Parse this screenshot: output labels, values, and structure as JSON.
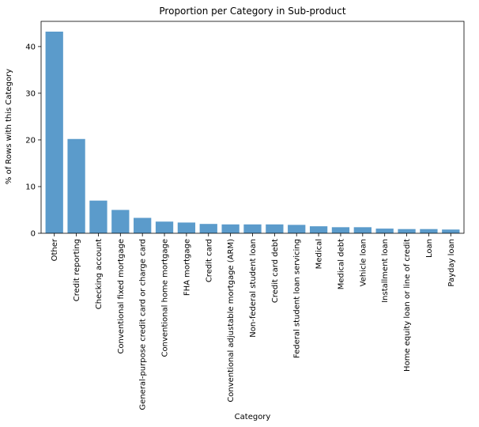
{
  "chart_data": {
    "type": "bar",
    "title": "Proportion per Category in Sub-product",
    "xlabel": "Category",
    "ylabel": "% of Rows with this Category",
    "ylim": [
      0,
      45.4
    ],
    "yticks": [
      0,
      10,
      20,
      30,
      40
    ],
    "grid": false,
    "bar_color": "#5b9bcb",
    "categories": [
      "Other",
      "Credit reporting",
      "Checking account",
      "Conventional fixed mortgage",
      "General-purpose credit card or charge card",
      "Conventional home mortgage",
      "FHA mortgage",
      "Credit card",
      "Conventional adjustable mortgage (ARM)",
      "Non-federal student loan",
      "Credit card debt",
      "Federal student loan servicing",
      "Medical",
      "Medical debt",
      "Vehicle loan",
      "Installment loan",
      "Home equity loan or line of credit",
      "Loan",
      "Payday loan"
    ],
    "values": [
      43.2,
      20.2,
      7.0,
      5.0,
      3.3,
      2.5,
      2.3,
      2.0,
      1.9,
      1.9,
      1.9,
      1.8,
      1.5,
      1.3,
      1.3,
      1.0,
      0.9,
      0.9,
      0.8
    ]
  }
}
